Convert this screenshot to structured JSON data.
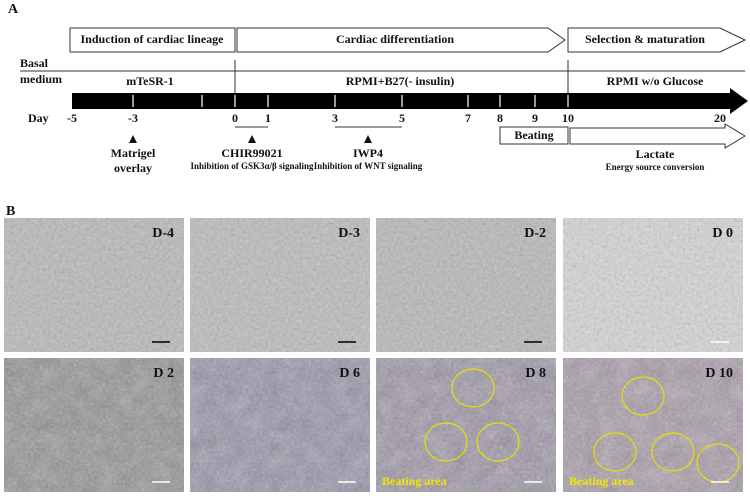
{
  "panel_a": {
    "label": "A",
    "phases": [
      "Induction of cardiac lineage",
      "Cardiac differentiation",
      "Selection & maturation"
    ],
    "basal_medium_label": [
      "Basal",
      "medium"
    ],
    "media": [
      "mTeSR-1",
      "RPMI+B27(- insulin)",
      "RPMI w/o Glucose"
    ],
    "day_label": "Day",
    "days": [
      "-5",
      "-3",
      "0",
      "1",
      "3",
      "5",
      "7",
      "8",
      "9",
      "10",
      "20"
    ],
    "matrigel": [
      "Matrigel",
      "overlay"
    ],
    "chir": {
      "name": "CHIR99021",
      "note": "Inhibition of GSK3α/β signaling"
    },
    "iwp4": {
      "name": "IWP4",
      "note": "Inhibition of WNT signaling"
    },
    "beating": "Beating",
    "lactate": {
      "name": "Lactate",
      "note": "Energy source conversion"
    }
  },
  "panel_b": {
    "label": "B",
    "images": [
      {
        "label": "D-4"
      },
      {
        "label": "D-3"
      },
      {
        "label": "D-2"
      },
      {
        "label": "D 0"
      },
      {
        "label": "D 2"
      },
      {
        "label": "D 6"
      },
      {
        "label": "D 8",
        "annotation": "Beating area"
      },
      {
        "label": "D 10",
        "annotation": "Beating area"
      }
    ]
  }
}
